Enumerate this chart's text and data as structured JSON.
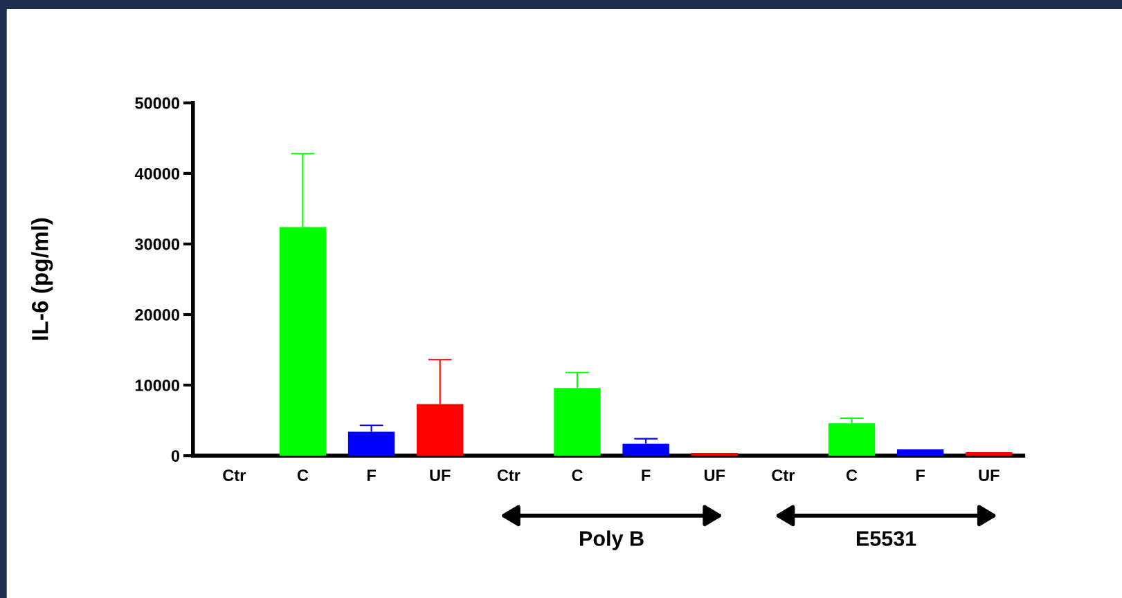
{
  "chart_data": {
    "type": "bar",
    "ylabel": "IL-6 (pg/ml)",
    "categories": [
      "Ctr",
      "C",
      "F",
      "UF",
      "Ctr",
      "C",
      "F",
      "UF",
      "Ctr",
      "C",
      "F",
      "UF"
    ],
    "values": [
      null,
      32400,
      3400,
      7300,
      null,
      9600,
      1700,
      400,
      null,
      4600,
      900,
      500
    ],
    "colors": [
      "#000000",
      "#00ff00",
      "#0000ff",
      "#ff0000",
      "#000000",
      "#00ff00",
      "#0000ff",
      "#ff0000",
      "#000000",
      "#00ff00",
      "#0000ff",
      "#ff0000"
    ],
    "errors": [
      null,
      [
        32400,
        42800
      ],
      [
        3400,
        4300
      ],
      [
        7300,
        13600
      ],
      null,
      [
        9600,
        11800
      ],
      [
        1700,
        2400
      ],
      null,
      null,
      [
        4600,
        5300
      ],
      null,
      null
    ],
    "ylim": [
      0,
      50000
    ],
    "yticks": [
      0,
      10000,
      20000,
      30000,
      40000,
      50000
    ],
    "annotations": [
      "Poly B",
      "E5531"
    ]
  }
}
